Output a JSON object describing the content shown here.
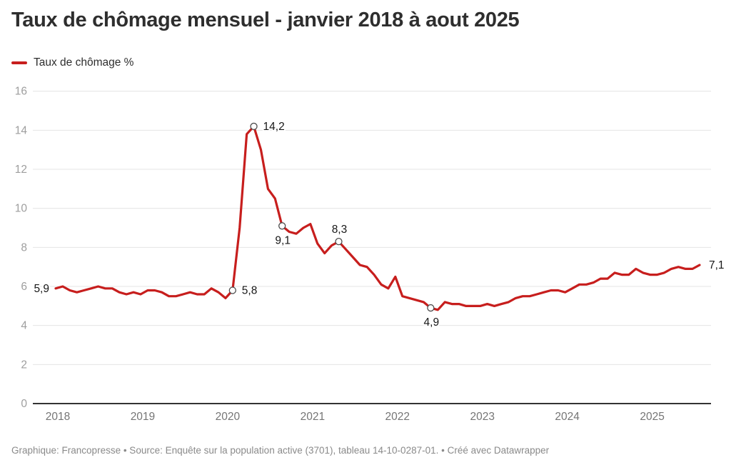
{
  "header": {
    "title": "Taux de chômage mensuel - janvier 2018 à aout 2025"
  },
  "legend": {
    "label": "Taux de chômage %",
    "color": "#c71e1d"
  },
  "footer": {
    "text": "Graphique: Francopresse • Source: Enquête sur la population active (3701), tableau 14-10-0287-01. • Créé avec Datawrapper"
  },
  "chart_data": {
    "type": "line",
    "title": "Taux de chômage mensuel - janvier 2018 à aout 2025",
    "series": [
      {
        "name": "Taux de chômage %",
        "values": [
          5.9,
          6.0,
          5.8,
          5.7,
          5.8,
          5.9,
          6.0,
          5.9,
          5.9,
          5.7,
          5.6,
          5.7,
          5.6,
          5.8,
          5.8,
          5.7,
          5.5,
          5.5,
          5.6,
          5.7,
          5.6,
          5.6,
          5.9,
          5.7,
          5.4,
          5.8,
          9.0,
          13.8,
          14.2,
          13.0,
          11.0,
          10.5,
          9.1,
          8.8,
          8.7,
          9.0,
          9.2,
          8.2,
          7.7,
          8.1,
          8.3,
          7.9,
          7.5,
          7.1,
          7.0,
          6.6,
          6.1,
          5.9,
          6.5,
          5.5,
          5.4,
          5.3,
          5.2,
          4.9,
          4.8,
          5.2,
          5.1,
          5.1,
          5.0,
          5.0,
          5.0,
          5.1,
          5.0,
          5.1,
          5.2,
          5.4,
          5.5,
          5.5,
          5.6,
          5.7,
          5.8,
          5.8,
          5.7,
          5.9,
          6.1,
          6.1,
          6.2,
          6.4,
          6.4,
          6.7,
          6.6,
          6.6,
          6.9,
          6.7,
          6.6,
          6.6,
          6.7,
          6.9,
          7.0,
          6.9,
          6.9,
          7.1
        ]
      }
    ],
    "x_range": [
      "2018-01",
      "2025-08"
    ],
    "x_tick_labels": [
      "2018",
      "2019",
      "2020",
      "2021",
      "2022",
      "2023",
      "2024",
      "2025"
    ],
    "y_ticks": [
      0,
      2,
      4,
      6,
      8,
      10,
      12,
      14,
      16
    ],
    "ylim": [
      0,
      16
    ],
    "xlabel": "",
    "ylabel": "",
    "grid": "horizontal",
    "legend_position": "top-left",
    "line_color": "#c71e1d",
    "annotations": [
      {
        "index": 0,
        "value": 5.9,
        "label": "5,9",
        "placement": "left",
        "marker": false
      },
      {
        "index": 25,
        "value": 5.8,
        "label": "5,8",
        "placement": "right",
        "marker": true
      },
      {
        "index": 28,
        "value": 14.2,
        "label": "14,2",
        "placement": "right",
        "marker": true
      },
      {
        "index": 32,
        "value": 9.1,
        "label": "9,1",
        "placement": "below",
        "marker": true
      },
      {
        "index": 40,
        "value": 8.3,
        "label": "8,3",
        "placement": "above",
        "marker": true
      },
      {
        "index": 53,
        "value": 4.9,
        "label": "4,9",
        "placement": "below",
        "marker": true
      },
      {
        "index": 91,
        "value": 7.1,
        "label": "7,1",
        "placement": "right",
        "marker": false
      }
    ]
  }
}
